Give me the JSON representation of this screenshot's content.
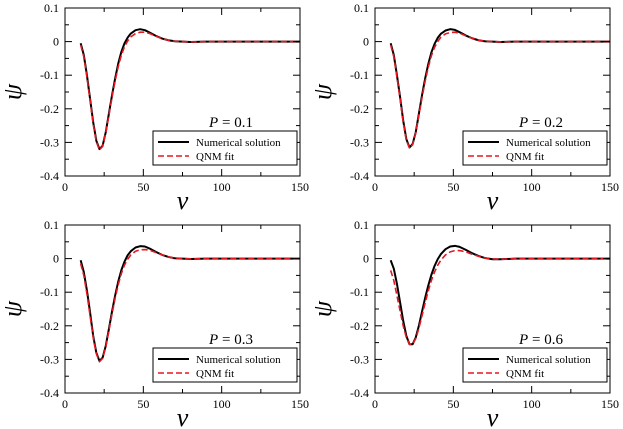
{
  "chart_data": [
    {
      "type": "line",
      "annotation": {
        "symbol": "P",
        "equals": " = ",
        "value": "0.1"
      },
      "xlabel": "v",
      "ylabel": "ψ",
      "xlim": [
        0,
        150
      ],
      "ylim": [
        -0.4,
        0.1
      ],
      "xticks": [
        0,
        50,
        100,
        150
      ],
      "yticks": [
        0.1,
        0,
        -0.1,
        -0.2,
        -0.3,
        -0.4
      ],
      "xtick_labels": [
        "0",
        "50",
        "100",
        "150"
      ],
      "ytick_labels": [
        "0.1",
        "0",
        "-0.1",
        "-0.2",
        "-0.3",
        "-0.4"
      ],
      "legend": {
        "position": "bottom-right",
        "entries": [
          "Numerical solution",
          "QNM fit"
        ]
      },
      "series": [
        {
          "name": "Numerical solution",
          "color": "#000000",
          "style": "solid",
          "x": [
            10,
            12,
            14,
            16,
            18,
            20,
            22,
            24,
            26,
            28,
            30,
            32,
            34,
            36,
            38,
            40,
            42,
            45,
            48,
            51,
            54,
            58,
            62,
            66,
            70,
            75,
            80,
            90,
            100,
            120,
            150
          ],
          "y": [
            -0.005,
            -0.04,
            -0.1,
            -0.17,
            -0.24,
            -0.295,
            -0.32,
            -0.31,
            -0.27,
            -0.215,
            -0.16,
            -0.11,
            -0.065,
            -0.03,
            -0.005,
            0.012,
            0.024,
            0.034,
            0.037,
            0.034,
            0.027,
            0.017,
            0.009,
            0.004,
            0.001,
            0.0,
            -0.001,
            0.0,
            0.0,
            0.0,
            0.0
          ]
        },
        {
          "name": "QNM fit",
          "color": "#e8161e",
          "style": "dashed",
          "x": [
            10,
            12,
            14,
            16,
            18,
            20,
            22,
            24,
            26,
            28,
            30,
            32,
            34,
            36,
            38,
            40,
            42,
            45,
            48,
            51,
            54,
            58,
            62,
            66,
            70,
            75,
            80,
            90,
            100,
            120,
            150
          ],
          "y": [
            -0.01,
            -0.045,
            -0.105,
            -0.175,
            -0.245,
            -0.298,
            -0.322,
            -0.312,
            -0.272,
            -0.22,
            -0.166,
            -0.117,
            -0.074,
            -0.04,
            -0.015,
            0.002,
            0.014,
            0.024,
            0.028,
            0.028,
            0.024,
            0.016,
            0.009,
            0.004,
            0.001,
            0.0,
            -0.001,
            0.0,
            0.0,
            0.0,
            0.0
          ]
        }
      ]
    },
    {
      "type": "line",
      "annotation": {
        "symbol": "P",
        "equals": " = ",
        "value": "0.2"
      },
      "xlabel": "v",
      "ylabel": "ψ",
      "xlim": [
        0,
        150
      ],
      "ylim": [
        -0.4,
        0.1
      ],
      "xticks": [
        0,
        50,
        100,
        150
      ],
      "yticks": [
        0.1,
        0,
        -0.1,
        -0.2,
        -0.3,
        -0.4
      ],
      "xtick_labels": [
        "0",
        "50",
        "100",
        "150"
      ],
      "ytick_labels": [
        "0.1",
        "0",
        "-0.1",
        "-0.2",
        "-0.3",
        "-0.4"
      ],
      "legend": {
        "position": "bottom-right",
        "entries": [
          "Numerical solution",
          "QNM fit"
        ]
      },
      "series": [
        {
          "name": "Numerical solution",
          "color": "#000000",
          "style": "solid",
          "x": [
            10,
            12,
            14,
            16,
            18,
            20,
            22,
            24,
            26,
            28,
            30,
            32,
            34,
            36,
            38,
            40,
            42,
            45,
            48,
            51,
            54,
            58,
            62,
            66,
            70,
            75,
            80,
            90,
            100,
            120,
            150
          ],
          "y": [
            -0.005,
            -0.04,
            -0.1,
            -0.165,
            -0.235,
            -0.29,
            -0.315,
            -0.305,
            -0.27,
            -0.215,
            -0.16,
            -0.11,
            -0.067,
            -0.032,
            -0.007,
            0.011,
            0.023,
            0.033,
            0.037,
            0.035,
            0.028,
            0.018,
            0.01,
            0.004,
            0.001,
            0.0,
            -0.001,
            0.0,
            0.0,
            0.0,
            0.0
          ]
        },
        {
          "name": "QNM fit",
          "color": "#e8161e",
          "style": "dashed",
          "x": [
            10,
            12,
            14,
            16,
            18,
            20,
            22,
            24,
            26,
            28,
            30,
            32,
            34,
            36,
            38,
            40,
            42,
            45,
            48,
            51,
            54,
            58,
            62,
            66,
            70,
            75,
            80,
            90,
            100,
            120,
            150
          ],
          "y": [
            -0.01,
            -0.045,
            -0.105,
            -0.17,
            -0.24,
            -0.293,
            -0.317,
            -0.307,
            -0.272,
            -0.22,
            -0.167,
            -0.118,
            -0.076,
            -0.042,
            -0.017,
            0.0,
            0.013,
            0.023,
            0.027,
            0.028,
            0.025,
            0.017,
            0.01,
            0.004,
            0.001,
            0.0,
            -0.001,
            0.0,
            0.0,
            0.0,
            0.0
          ]
        }
      ]
    },
    {
      "type": "line",
      "annotation": {
        "symbol": "P",
        "equals": " = ",
        "value": "0.3"
      },
      "xlabel": "v",
      "ylabel": "ψ",
      "xlim": [
        0,
        150
      ],
      "ylim": [
        -0.4,
        0.1
      ],
      "xticks": [
        0,
        50,
        100,
        150
      ],
      "yticks": [
        0.1,
        0,
        -0.1,
        -0.2,
        -0.3,
        -0.4
      ],
      "xtick_labels": [
        "0",
        "50",
        "100",
        "150"
      ],
      "ytick_labels": [
        "0.1",
        "0",
        "-0.1",
        "-0.2",
        "-0.3",
        "-0.4"
      ],
      "legend": {
        "position": "bottom-right",
        "entries": [
          "Numerical solution",
          "QNM fit"
        ]
      },
      "series": [
        {
          "name": "Numerical solution",
          "color": "#000000",
          "style": "solid",
          "x": [
            10,
            12,
            14,
            16,
            18,
            20,
            22,
            24,
            26,
            28,
            30,
            32,
            34,
            36,
            38,
            40,
            42,
            45,
            48,
            51,
            54,
            58,
            62,
            66,
            70,
            75,
            80,
            90,
            100,
            120,
            150
          ],
          "y": [
            -0.005,
            -0.04,
            -0.095,
            -0.16,
            -0.23,
            -0.28,
            -0.305,
            -0.295,
            -0.26,
            -0.21,
            -0.158,
            -0.11,
            -0.068,
            -0.034,
            -0.009,
            0.01,
            0.022,
            0.033,
            0.037,
            0.036,
            0.03,
            0.02,
            0.011,
            0.005,
            0.001,
            0.0,
            -0.001,
            0.0,
            0.0,
            0.0,
            0.0
          ]
        },
        {
          "name": "QNM fit",
          "color": "#e8161e",
          "style": "dashed",
          "x": [
            10,
            12,
            14,
            16,
            18,
            20,
            22,
            24,
            26,
            28,
            30,
            32,
            34,
            36,
            38,
            40,
            42,
            45,
            48,
            51,
            54,
            58,
            62,
            66,
            70,
            75,
            80,
            90,
            100,
            120,
            150
          ],
          "y": [
            -0.015,
            -0.05,
            -0.105,
            -0.17,
            -0.235,
            -0.283,
            -0.307,
            -0.297,
            -0.264,
            -0.215,
            -0.165,
            -0.118,
            -0.077,
            -0.044,
            -0.019,
            -0.002,
            0.011,
            0.022,
            0.026,
            0.027,
            0.025,
            0.018,
            0.011,
            0.005,
            0.001,
            0.0,
            -0.001,
            0.0,
            0.0,
            0.0,
            0.0
          ]
        }
      ]
    },
    {
      "type": "line",
      "annotation": {
        "symbol": "P",
        "equals": " = ",
        "value": "0.6"
      },
      "xlabel": "v",
      "ylabel": "ψ",
      "xlim": [
        0,
        150
      ],
      "ylim": [
        -0.4,
        0.1
      ],
      "xticks": [
        0,
        50,
        100,
        150
      ],
      "yticks": [
        0.1,
        0,
        -0.1,
        -0.2,
        -0.3,
        -0.4
      ],
      "xtick_labels": [
        "0",
        "50",
        "100",
        "150"
      ],
      "ytick_labels": [
        "0.1",
        "0",
        "-0.1",
        "-0.2",
        "-0.3",
        "-0.4"
      ],
      "legend": {
        "position": "bottom-right",
        "entries": [
          "Numerical solution",
          "QNM fit"
        ]
      },
      "series": [
        {
          "name": "Numerical solution",
          "color": "#000000",
          "style": "solid",
          "x": [
            10,
            12,
            14,
            16,
            18,
            20,
            22,
            24,
            26,
            28,
            30,
            32,
            34,
            36,
            38,
            40,
            42,
            45,
            48,
            51,
            54,
            58,
            62,
            66,
            70,
            75,
            80,
            90,
            100,
            120,
            150
          ],
          "y": [
            -0.005,
            -0.03,
            -0.075,
            -0.13,
            -0.185,
            -0.23,
            -0.255,
            -0.255,
            -0.235,
            -0.2,
            -0.158,
            -0.117,
            -0.08,
            -0.048,
            -0.022,
            -0.002,
            0.013,
            0.028,
            0.036,
            0.038,
            0.035,
            0.026,
            0.016,
            0.008,
            0.002,
            -0.002,
            -0.002,
            0.0,
            0.0,
            0.0,
            0.0
          ]
        },
        {
          "name": "QNM fit",
          "color": "#e8161e",
          "style": "dashed",
          "x": [
            10,
            12,
            14,
            16,
            18,
            20,
            22,
            24,
            26,
            28,
            30,
            32,
            34,
            36,
            38,
            40,
            42,
            45,
            48,
            51,
            54,
            58,
            62,
            66,
            70,
            75,
            80,
            90,
            100,
            120,
            150
          ],
          "y": [
            -0.035,
            -0.065,
            -0.11,
            -0.155,
            -0.2,
            -0.235,
            -0.255,
            -0.255,
            -0.238,
            -0.208,
            -0.17,
            -0.132,
            -0.096,
            -0.065,
            -0.04,
            -0.02,
            -0.005,
            0.011,
            0.02,
            0.024,
            0.024,
            0.02,
            0.013,
            0.007,
            0.002,
            -0.001,
            -0.002,
            0.0,
            0.0,
            0.0,
            0.0
          ]
        }
      ]
    }
  ]
}
